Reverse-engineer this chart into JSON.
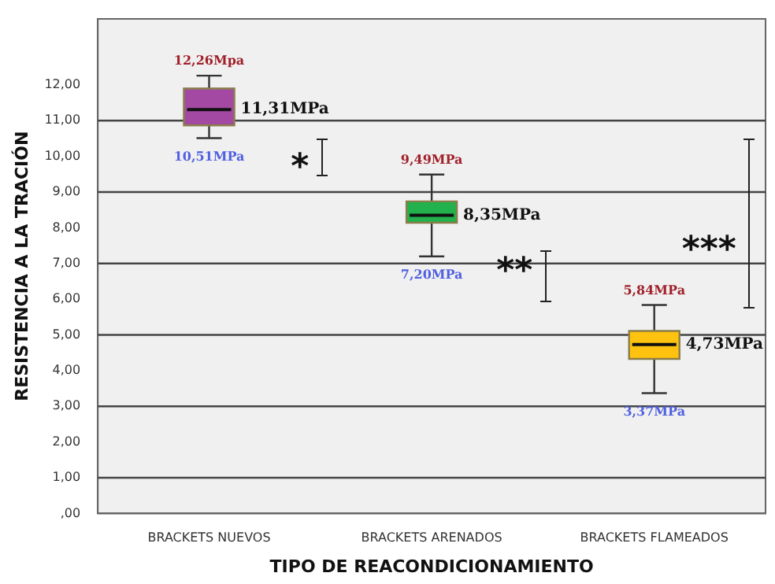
{
  "chart_data": {
    "type": "box",
    "xlabel": "TIPO DE REACONDICIONAMIENTO",
    "ylabel": "RESISTENCIA A LA TRACIÓN",
    "categories": [
      "BRACKETS NUEVOS",
      "BRACKETS ARENADOS",
      "BRACKETS FLAMEADOS"
    ],
    "colors": [
      "#a349a4",
      "#22b14c",
      "#ffc20e"
    ],
    "boxes": [
      {
        "low": 10.51,
        "q1": 10.87,
        "median": 11.31,
        "q3": 11.9,
        "high": 12.26
      },
      {
        "low": 7.2,
        "q1": 8.14,
        "median": 8.35,
        "q3": 8.74,
        "high": 9.49
      },
      {
        "low": 3.37,
        "q1": 4.33,
        "median": 4.73,
        "q3": 5.11,
        "high": 5.84
      }
    ],
    "ylim": [
      0,
      13.85
    ],
    "yticks": [
      {
        "value": 0,
        "label": ",00"
      },
      {
        "value": 1,
        "label": "1,00"
      },
      {
        "value": 2,
        "label": "2,00"
      },
      {
        "value": 3,
        "label": "3,00"
      },
      {
        "value": 4,
        "label": "4,00"
      },
      {
        "value": 5,
        "label": "5,00"
      },
      {
        "value": 6,
        "label": "6,00"
      },
      {
        "value": 7,
        "label": "7,00"
      },
      {
        "value": 8,
        "label": "8,00"
      },
      {
        "value": 9,
        "label": "9,00"
      },
      {
        "value": 10,
        "label": "10,00"
      },
      {
        "value": 11,
        "label": "11,00"
      },
      {
        "value": 12,
        "label": "12,00"
      }
    ],
    "ref_lines": [
      {
        "axis": "y",
        "value": 1
      },
      {
        "axis": "y",
        "value": 3
      },
      {
        "axis": "y",
        "value": 5
      },
      {
        "axis": "y",
        "value": 7
      },
      {
        "axis": "y",
        "value": 9
      },
      {
        "axis": "y",
        "value": 11
      }
    ],
    "annotations": [
      {
        "text": "12,26Mpa",
        "x": "BRACKETS NUEVOS",
        "y": 12.26
      },
      {
        "text": "11,31MPa",
        "x": "BRACKETS NUEVOS",
        "y": 11.31
      },
      {
        "text": "10,51MPa",
        "x": "BRACKETS NUEVOS",
        "y": 10.51
      },
      {
        "text": "9,49MPa",
        "x": "BRACKETS ARENADOS",
        "y": 9.49
      },
      {
        "text": "8,35MPa",
        "x": "BRACKETS ARENADOS",
        "y": 8.35
      },
      {
        "text": "7,20MPa",
        "x": "BRACKETS ARENADOS",
        "y": 7.2
      },
      {
        "text": "5,84MPa",
        "x": "BRACKETS FLAMEADOS",
        "y": 5.84
      },
      {
        "text": "4,73MPa",
        "x": "BRACKETS FLAMEADOS",
        "y": 4.73
      },
      {
        "text": "3,37MPa",
        "x": "BRACKETS FLAMEADOS",
        "y": 3.37
      },
      "*",
      "**",
      "***"
    ]
  }
}
